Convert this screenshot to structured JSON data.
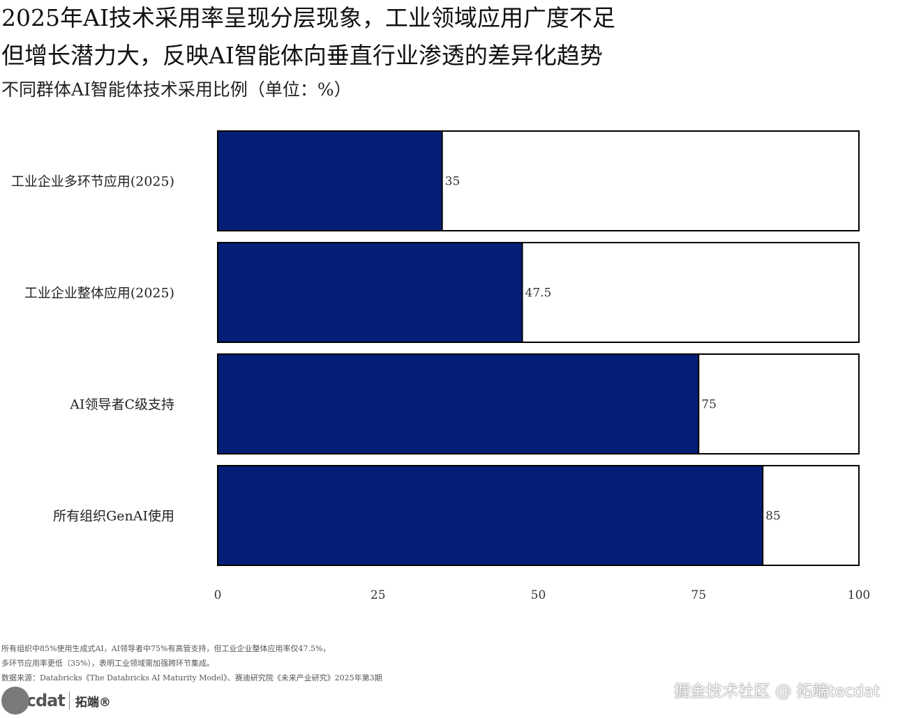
{
  "header": {
    "title_line1": "2025年AI技术采用率呈现分层现象，工业领域应用广度不足",
    "title_line2": "但增长潜力大，反映AI智能体向垂直行业渗透的差异化趋势",
    "subtitle": "不同群体AI智能体技术采用比例（单位：%）"
  },
  "chart_data": {
    "type": "bar",
    "orientation": "horizontal",
    "categories": [
      "工业企业多环节应用(2025)",
      "工业企业整体应用(2025)",
      "AI领导者C级支持",
      "所有组织GenAI使用"
    ],
    "values": [
      35,
      47.5,
      75,
      85
    ],
    "value_labels": [
      "35",
      "47.5",
      "75",
      "85"
    ],
    "xlim": [
      0,
      100
    ],
    "xticks": [
      "0",
      "25",
      "50",
      "75",
      "100"
    ],
    "grid": false,
    "colors": {
      "bar_fill": "#041e78",
      "track_fill": "#ffffff",
      "border": "#000000"
    }
  },
  "footer": {
    "note_line1": "所有组织中85%使用生成式AI，AI领导者中75%有高管支持，但工业企业整体应用率仅47.5%，",
    "note_line2": "多环节应用率更低（35%），表明工业领域需加强跨环节集成。",
    "source": "数据来源：Databricks《The Databricks AI Maturity Model》、赛迪研究院《未来产业研究》2025年第3期",
    "brand_logo": "tecdat",
    "brand_name": "拓端®",
    "watermark": "掘金技术社区 @ 拓端tecdat"
  }
}
